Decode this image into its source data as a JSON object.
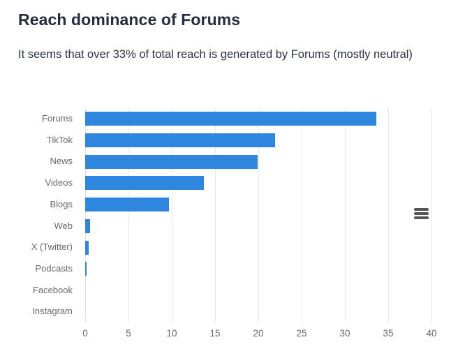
{
  "header": {
    "title": "Reach dominance of Forums",
    "subtitle": "It seems that over 33% of total reach is generated by Forums (mostly neutral)"
  },
  "chart_data": {
    "type": "bar",
    "orientation": "horizontal",
    "title": "",
    "xlabel": "",
    "ylabel": "",
    "categories": [
      "Forums",
      "TikTok",
      "News",
      "Videos",
      "Blogs",
      "Web",
      "X (Twitter)",
      "Podcasts",
      "Facebook",
      "Instagram"
    ],
    "values": [
      33.6,
      21.9,
      19.9,
      13.7,
      9.7,
      0.6,
      0.4,
      0.2,
      0,
      0
    ],
    "xlim": [
      0,
      40
    ],
    "x_ticks": [
      0,
      5,
      10,
      15,
      20,
      25,
      30,
      35,
      40
    ],
    "grid": true,
    "legend": "none",
    "bar_color": "#2e86de"
  },
  "colors": {
    "title_text": "#252e3e",
    "subtitle_text": "#2b3342",
    "axis_label_text": "#666a6e",
    "gridline": "#e7e7e7",
    "bar": "#2e86de",
    "menu_icon": "#565656",
    "background": "#ffffff"
  },
  "toolbar": {
    "context_menu_tooltip": "Chart context menu"
  }
}
